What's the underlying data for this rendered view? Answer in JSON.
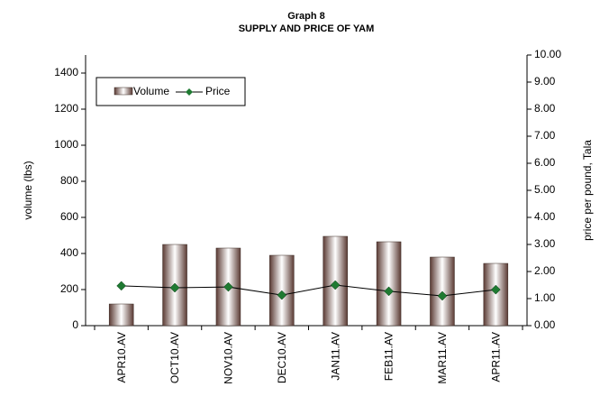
{
  "chart_data": {
    "type": "bar_line",
    "title": "Graph 8",
    "subtitle": "SUPPLY AND PRICE OF YAM",
    "y_label": "volume (lbs)",
    "y2_label": "price per pound, Tala",
    "categories": [
      "APR10.AV",
      "OCT10.AV",
      "NOV10.AV",
      "DEC10.AV",
      "JAN11.AV",
      "FEB11.AV",
      "MAR11.AV",
      "APR11.AV"
    ],
    "series": [
      {
        "name": "Volume",
        "color": "#6b4a42",
        "values": [
          120,
          450,
          430,
          390,
          495,
          465,
          380,
          345
        ]
      },
      {
        "name": "Price",
        "color": "#1f7a32",
        "axis": "y2",
        "values": [
          1.47,
          1.4,
          1.43,
          1.13,
          1.5,
          1.27,
          1.1,
          1.33
        ]
      }
    ],
    "ylim": [
      0,
      1500
    ],
    "yticks": [
      0,
      200,
      400,
      600,
      800,
      1000,
      1200,
      1400
    ],
    "y2lim": [
      0,
      10
    ],
    "y2ticks": [
      {
        "value": 0,
        "label": "0.00"
      },
      {
        "value": 1,
        "label": "1.00"
      },
      {
        "value": 2,
        "label": "2.00"
      },
      {
        "value": 3,
        "label": "3.00"
      },
      {
        "value": 4,
        "label": "4.00"
      },
      {
        "value": 5,
        "label": "5.00"
      },
      {
        "value": 6,
        "label": "6.00"
      },
      {
        "value": 7,
        "label": "7.00"
      },
      {
        "value": 8,
        "label": "8.00"
      },
      {
        "value": 9,
        "label": "9.00"
      },
      {
        "value": 10,
        "label": "10.00"
      }
    ],
    "legend": "upper left"
  }
}
